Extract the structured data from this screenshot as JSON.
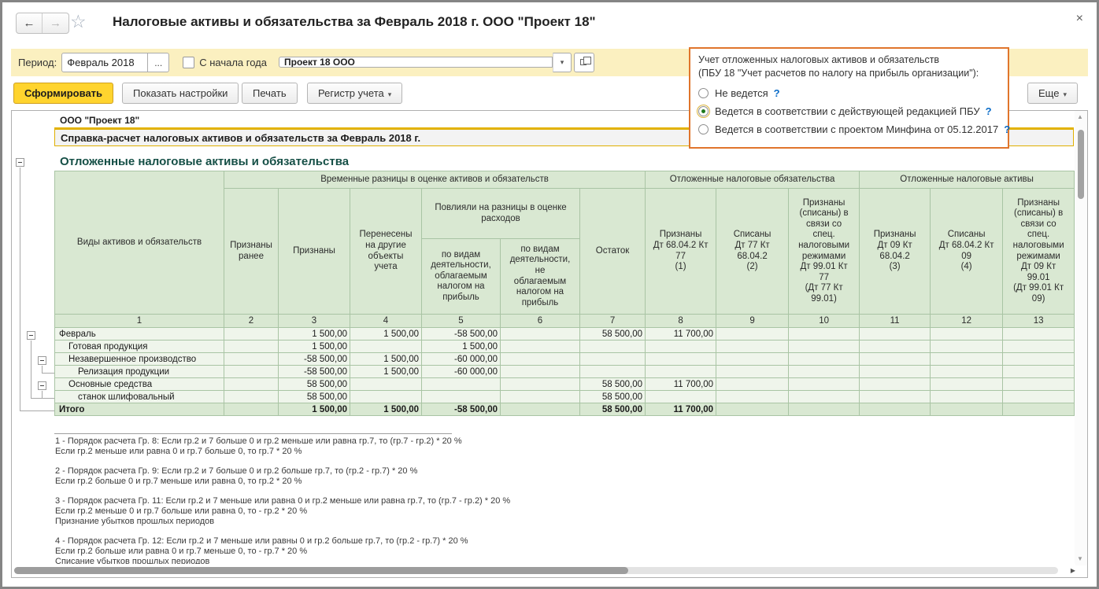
{
  "colors": {
    "toolbar_bg": "#fbf0c0",
    "primary_btn": "#ffd42e",
    "primary_btn_border": "#cfa020",
    "popup_border": "#e0752c",
    "table_header_bg": "#d9e8d2",
    "table_row_bg": "#eff5eb",
    "table_border": "#a9c4a4",
    "table_outer": "#87a585",
    "section_title": "#154f46",
    "gold": "#e3b200",
    "help": "#0a6cc8",
    "radio_sel": "#1e7a1e"
  },
  "icons": {
    "back": "←",
    "forward": "→",
    "favorites_star": "☆",
    "close": "×",
    "dropdown_caret": "▾",
    "scroll_up": "▲",
    "scroll_down": "▼",
    "scroll_right": "▶"
  },
  "window": {
    "title": "Налоговые активы и обязательства за Февраль 2018 г. ООО \"Проект 18\""
  },
  "period_bar": {
    "period_label": "Период:",
    "period_value": "Февраль 2018",
    "period_more": "...",
    "from_year_label": "С начала года",
    "from_year_checked": false,
    "organization_value": "Проект 18 ООО"
  },
  "actions": {
    "generate": "Сформировать",
    "show_settings": "Показать настройки",
    "print": "Печать",
    "register": "Регистр учета",
    "more": "Еще"
  },
  "popup": {
    "heading_line1": "Учет отложенных налоговых активов и обязательств",
    "heading_line2": "(ПБУ 18 \"Учет расчетов по налогу на прибыль организации\"):",
    "help_mark": "?",
    "options": [
      {
        "label": "Не ведется",
        "selected": false
      },
      {
        "label": "Ведется в соответствии с действующей редакцией ПБУ",
        "selected": true
      },
      {
        "label": "Ведется в соответствии с проектом Минфина от 05.12.2017",
        "selected": false
      }
    ]
  },
  "report": {
    "org_name": "ООО \"Проект 18\"",
    "title": "Справка-расчет налоговых активов и обязательств за Февраль 2018 г.",
    "section_title": "Отложенные налоговые активы и обязательства",
    "table": {
      "header": {
        "col1": "Виды активов и обязательств",
        "group_temporary": "Временные разницы в оценке активов и обязательств",
        "group_liabilities": "Отложенные налоговые обязательства",
        "group_assets": "Отложенные налоговые активы",
        "recognized_earlier": "Признаны\nранее",
        "recognized": "Признаны",
        "transferred": "Перенесены\nна другие\nобъекты\nучета",
        "influenced": "Повлияли на разницы в оценке\nрасходов",
        "by_taxable": "по видам\nдеятельности,\nоблагаемым\nналогом на\nприбыль",
        "by_nontaxable": "по видам\nдеятельности,\nне\nоблагаемым\nналогом на\nприбыль",
        "balance": "Остаток",
        "col8": "Признаны\nДт 68.04.2 Кт\n77\n(1)",
        "col9": "Списаны\nДт 77 Кт\n68.04.2\n(2)",
        "col10": "Признаны\n(списаны) в\nсвязи со\nспец.\nналоговыми\nрежимами\nДт 99.01 Кт\n77\n(Дт 77 Кт\n99.01)",
        "col11": "Признаны\nДт 09 Кт\n68.04.2\n(3)",
        "col12": "Списаны\nДт 68.04.2 Кт\n09\n(4)",
        "col13": "Признаны\n(списаны) в\nсвязи со\nспец.\nналоговыми\nрежимами\nДт 09 Кт\n99.01\n(Дт 99.01 Кт\n09)"
      },
      "number_row": [
        "1",
        "2",
        "3",
        "4",
        "5",
        "6",
        "7",
        "8",
        "9",
        "10",
        "11",
        "12",
        "13"
      ],
      "rows": [
        {
          "label": "Февраль",
          "indent": 0,
          "cells": [
            "",
            "1 500,00",
            "1 500,00",
            "-58 500,00",
            "",
            "58 500,00",
            "11 700,00",
            "",
            "",
            "",
            "",
            ""
          ]
        },
        {
          "label": "Готовая продукция",
          "indent": 1,
          "cells": [
            "",
            "1 500,00",
            "",
            "1 500,00",
            "",
            "",
            "",
            "",
            "",
            "",
            "",
            ""
          ]
        },
        {
          "label": "Незавершенное производство",
          "indent": 1,
          "cells": [
            "",
            "-58 500,00",
            "1 500,00",
            "-60 000,00",
            "",
            "",
            "",
            "",
            "",
            "",
            "",
            ""
          ]
        },
        {
          "label": "Релизация продукции",
          "indent": 2,
          "cells": [
            "",
            "-58 500,00",
            "1 500,00",
            "-60 000,00",
            "",
            "",
            "",
            "",
            "",
            "",
            "",
            ""
          ]
        },
        {
          "label": "Основные средства",
          "indent": 1,
          "cells": [
            "",
            "58 500,00",
            "",
            "",
            "",
            "58 500,00",
            "11 700,00",
            "",
            "",
            "",
            "",
            ""
          ]
        },
        {
          "label": "станок шлифовальный",
          "indent": 2,
          "cells": [
            "",
            "58 500,00",
            "",
            "",
            "",
            "58 500,00",
            "",
            "",
            "",
            "",
            "",
            ""
          ]
        }
      ],
      "total_row": {
        "label": "Итого",
        "indent": 0,
        "cells": [
          "",
          "1 500,00",
          "1 500,00",
          "-58 500,00",
          "",
          "58 500,00",
          "11 700,00",
          "",
          "",
          "",
          "",
          ""
        ]
      }
    },
    "footnotes": [
      {
        "lines": [
          "1 - Порядок расчета Гр. 8: Если гр.2 и 7 больше 0 и гр.2 меньше или равна гр.7, то (гр.7 - гр.2) * 20 %",
          "Если гр.2 меньше или равна 0 и гр.7 больше 0, то   гр.7 * 20 %"
        ]
      },
      {
        "lines": [
          "2 - Порядок расчета Гр. 9: Если гр.2 и 7 больше 0 и гр.2 больше гр.7, то (гр.2 - гр.7) * 20 %",
          "Если гр.2 больше 0 и гр.7 меньше или равна 0, то   гр.2 * 20 %"
        ]
      },
      {
        "lines": [
          "3 - Порядок расчета Гр. 11:  Если гр.2 и 7 меньше или равна 0 и гр.2 меньше или равна гр.7, то (гр.7 - гр.2) * 20 %",
          "Если гр.2 меньше 0 и гр.7 больше или равна 0, то - гр.2 * 20 %",
          "Признание убытков прошлых периодов"
        ]
      },
      {
        "lines": [
          "4 - Порядок расчета Гр. 12:  Если гр.2 и 7 меньше или равны 0 и гр.2 больше гр.7, то (гр.2 - гр.7) * 20 %",
          "Если гр.2 больше или равна 0 и гр.7 меньше 0, то - гр.7 * 20 %",
          "Списание убытков прошлых периодов"
        ]
      }
    ]
  }
}
